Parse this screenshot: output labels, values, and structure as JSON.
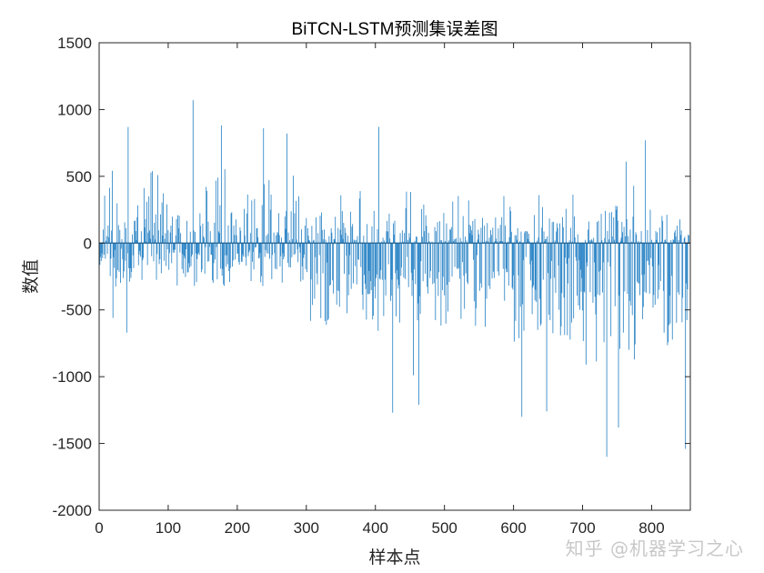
{
  "chart_data": {
    "type": "bar",
    "title": "BiTCN-LSTM预测集误差图",
    "xlabel": "样本点",
    "ylabel": "数值",
    "xlim": [
      0,
      856
    ],
    "ylim": [
      -2000,
      1500
    ],
    "xticks": [
      0,
      100,
      200,
      300,
      400,
      500,
      600,
      700,
      800
    ],
    "yticks": [
      1500,
      1000,
      500,
      0,
      -500,
      -1000,
      -1500,
      -2000
    ],
    "n_samples": 856,
    "bar_color": "#2e86c7",
    "grid": false,
    "legend": "none",
    "envelope_segments": [
      {
        "x": [
          1,
          80
        ],
        "values": [
          220,
          -150
        ],
        "amp_pos": 520,
        "amp_neg": 380
      },
      {
        "x": [
          80,
          300
        ],
        "values": [
          140,
          -140
        ],
        "amp_pos": 560,
        "amp_neg": 360
      },
      {
        "x": [
          300,
          400
        ],
        "values": [
          60,
          -450
        ],
        "amp_pos": 380,
        "amp_neg": 560
      },
      {
        "x": [
          400,
          480
        ],
        "values": [
          40,
          -520
        ],
        "amp_pos": 420,
        "amp_neg": 600
      },
      {
        "x": [
          480,
          600
        ],
        "values": [
          30,
          -420
        ],
        "amp_pos": 350,
        "amp_neg": 620
      },
      {
        "x": [
          600,
          700
        ],
        "values": [
          25,
          -520
        ],
        "amp_pos": 380,
        "amp_neg": 700
      },
      {
        "x": [
          700,
          780
        ],
        "values": [
          30,
          -720
        ],
        "amp_pos": 450,
        "amp_neg": 820
      },
      {
        "x": [
          780,
          856
        ],
        "values": [
          20,
          -560
        ],
        "amp_pos": 300,
        "amp_neg": 760
      }
    ],
    "extrema": [
      {
        "x": 42,
        "y": 870
      },
      {
        "x": 136,
        "y": 1070
      },
      {
        "x": 177,
        "y": 880
      },
      {
        "x": 238,
        "y": 860
      },
      {
        "x": 272,
        "y": 820
      },
      {
        "x": 405,
        "y": 870
      },
      {
        "x": 425,
        "y": -1270
      },
      {
        "x": 463,
        "y": -1210
      },
      {
        "x": 455,
        "y": -990
      },
      {
        "x": 612,
        "y": -1300
      },
      {
        "x": 648,
        "y": -1260
      },
      {
        "x": 735,
        "y": -1600
      },
      {
        "x": 752,
        "y": -1380
      },
      {
        "x": 763,
        "y": 610
      },
      {
        "x": 791,
        "y": 770
      },
      {
        "x": 849,
        "y": -1540
      },
      {
        "x": 20,
        "y": -560
      },
      {
        "x": 40,
        "y": -670
      }
    ]
  },
  "watermark": "知乎 @机器学习之心"
}
